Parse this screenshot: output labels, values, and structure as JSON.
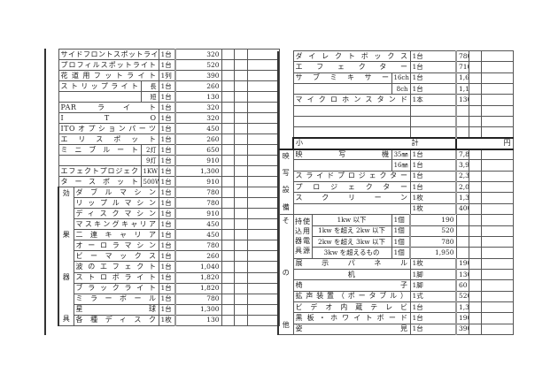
{
  "left": {
    "rows": [
      {
        "name": "サイドフロントスポットライト",
        "qty": "1台",
        "price": "320"
      },
      {
        "name": "プロフィルスポットライト",
        "qty": "1台",
        "price": "520"
      },
      {
        "name": "花道用フットライト",
        "qty": "1列",
        "price": "390"
      },
      {
        "name": "ストリップライト",
        "sub": "長",
        "qty": "1台",
        "price": "260"
      },
      {
        "name": "",
        "sub": "短",
        "qty": "1台",
        "price": "130",
        "cont": true
      },
      {
        "name": "PAR ライト",
        "qty": "1台",
        "price": "320"
      },
      {
        "name": "I T O",
        "qty": "1台",
        "price": "320"
      },
      {
        "name": "ITOオプションパーツ",
        "qty": "1台",
        "price": "450"
      },
      {
        "name": "エリスポット",
        "qty": "1台",
        "price": "260"
      },
      {
        "name": "ミニブルート",
        "sub": "2灯",
        "qty": "1台",
        "price": "650"
      },
      {
        "name": "",
        "sub": "9灯",
        "qty": "1台",
        "price": "910",
        "cont": true
      },
      {
        "name": "エフェクトプロジェク",
        "sub": "1KW",
        "qty": "1台",
        "price": "1,300"
      },
      {
        "name": "タースポット",
        "sub": "500W",
        "qty": "1台",
        "price": "910"
      }
    ],
    "group": {
      "label": [
        "効",
        "果",
        "器",
        "具"
      ],
      "rows": [
        {
          "name": "ダブルマシン",
          "qty": "1台",
          "price": "780"
        },
        {
          "name": "リップルマシン",
          "qty": "1台",
          "price": "780"
        },
        {
          "name": "ディスクマシン",
          "qty": "1台",
          "price": "910"
        },
        {
          "name": "マスキングキャリア",
          "qty": "1台",
          "price": "450"
        },
        {
          "name": "二連キャリア",
          "qty": "1台",
          "price": "450"
        },
        {
          "name": "オーロラマシン",
          "qty": "1台",
          "price": "780"
        },
        {
          "name": "ビーマックス",
          "qty": "1台",
          "price": "260"
        },
        {
          "name": "波のエフェクト",
          "qty": "1台",
          "price": "1,040"
        },
        {
          "name": "ストロボライト",
          "qty": "1台",
          "price": "1,820"
        },
        {
          "name": "ブラックライト",
          "qty": "1台",
          "price": "1,820"
        },
        {
          "name": "ミラーボール",
          "qty": "1台",
          "price": "780"
        },
        {
          "name": "星 球",
          "qty": "1台",
          "price": "1,300"
        },
        {
          "name": "各種ディスク",
          "qty": "1枚",
          "price": "130"
        }
      ]
    }
  },
  "right": {
    "rows": [
      {
        "name": "ダイレクトボックス",
        "qty": "1台",
        "price": "780"
      },
      {
        "name": "エフェクター",
        "qty": "1台",
        "price": "710"
      },
      {
        "name": "サブミキサー",
        "sub": "16ch",
        "qty": "1台",
        "price": "1,690"
      },
      {
        "name": "",
        "sub": "8ch",
        "qty": "1台",
        "price": "1,170",
        "cont": true
      },
      {
        "name": "マイクロホンスタンド",
        "qty": "1本",
        "price": "130"
      },
      {
        "empty": true
      },
      {
        "empty": true
      },
      {
        "empty": true
      }
    ],
    "subtotal": {
      "label": "小 計",
      "unit": "円"
    },
    "projection": {
      "label": [
        "映",
        "写",
        "設",
        "備"
      ],
      "rows": [
        {
          "name": "映 写 機",
          "sub": "35㎜",
          "qty": "1台",
          "price": "7,800"
        },
        {
          "name": "",
          "sub": "16㎜",
          "qty": "1台",
          "price": "3,900",
          "cont": true
        },
        {
          "name": "スライドプロジェクター",
          "qty": "1台",
          "price": "2,340"
        },
        {
          "name": "プロジェクター",
          "qty": "1台",
          "price": "2,000"
        },
        {
          "name": "スクリーン",
          "qty": "1枚",
          "price": "1,300"
        },
        {
          "name": "",
          "qty": "1枚",
          "price": "400",
          "cont": true
        }
      ]
    },
    "other": {
      "label": [
        "そ",
        "の",
        "他"
      ],
      "carry_in": {
        "label_a": [
          "持",
          "込",
          "器",
          "具"
        ],
        "label_b": [
          "使",
          "用",
          "電",
          "源"
        ],
        "rows": [
          {
            "spec": "1kw 以下",
            "qty": "1個",
            "price": "190"
          },
          {
            "spec": "1kw を超え 2kw 以下",
            "qty": "1個",
            "price": "520"
          },
          {
            "spec": "2kw を超え 3kw 以下",
            "qty": "1個",
            "price": "780"
          },
          {
            "spec": "3kw を超えるもの",
            "qty": "1個",
            "price": "1,950"
          }
        ]
      },
      "rows": [
        {
          "name": "展示パネル",
          "qty": "1枚",
          "price": "190"
        },
        {
          "name": "机",
          "qty": "1脚",
          "price": "130",
          "center": true
        },
        {
          "name": "椅 子",
          "qty": "1脚",
          "price": "60"
        },
        {
          "name": "拡声装置（ポータブル）",
          "qty": "1式",
          "price": "520"
        },
        {
          "name": "ビデオ内蔵テレビ",
          "qty": "1台",
          "price": "1,300"
        },
        {
          "name": "黒板・ホワイトボード",
          "qty": "1台",
          "price": "190"
        },
        {
          "name": "姿 見",
          "qty": "1台",
          "price": "390"
        }
      ]
    }
  }
}
